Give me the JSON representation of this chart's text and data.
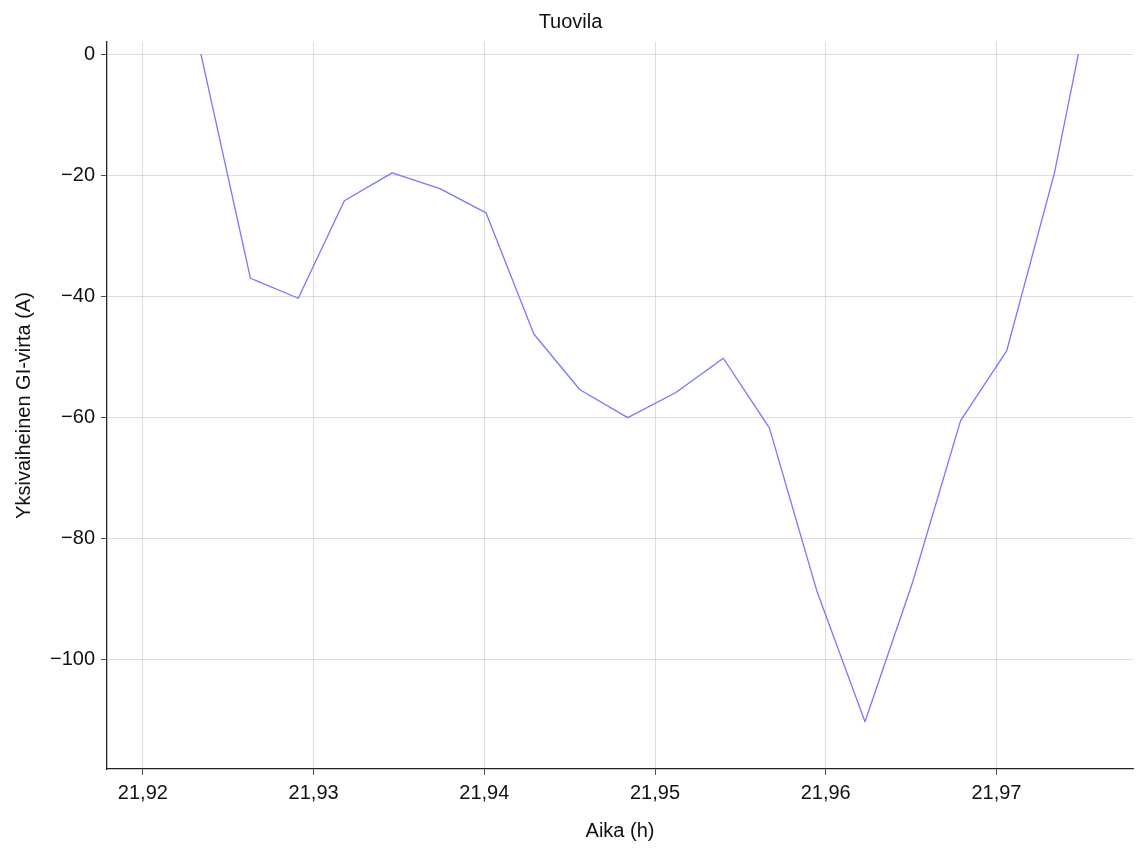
{
  "chart_data": {
    "type": "line",
    "title": "Tuovila",
    "xlabel": "Aika (h)",
    "ylabel": "Yksivaiheinen GI-virta (A)",
    "x": [
      21.9234,
      21.9263,
      21.9291,
      21.9318,
      21.9346,
      21.9374,
      21.9401,
      21.9429,
      21.9456,
      21.9484,
      21.9512,
      21.954,
      21.9567,
      21.9595,
      21.9623,
      21.9651,
      21.9679,
      21.9706,
      21.9734,
      21.9748
    ],
    "series": [
      {
        "color": "#7777ff",
        "values": [
          0,
          -37,
          -40.3,
          -24.2,
          -19.6,
          -22.2,
          -26.2,
          -46.2,
          -55.4,
          -60,
          -55.9,
          -50.2,
          -61.7,
          -88.8,
          -110.2,
          -87.1,
          -60.5,
          -49,
          -19.6,
          0
        ]
      }
    ],
    "xlim": [
      21.9179,
      21.978
    ],
    "xticks": [
      {
        "value": 21.92,
        "label": "21,92"
      },
      {
        "value": 21.93,
        "label": "21,93"
      },
      {
        "value": 21.94,
        "label": "21,94"
      },
      {
        "value": 21.95,
        "label": "21,95"
      },
      {
        "value": 21.96,
        "label": "21,96"
      },
      {
        "value": 21.97,
        "label": "21,97"
      }
    ],
    "ylim": [
      -118,
      2
    ],
    "yticks": [
      {
        "value": -100,
        "label": "−100"
      },
      {
        "value": -80,
        "label": "−80"
      },
      {
        "value": -60,
        "label": "−60"
      },
      {
        "value": -40,
        "label": "−40"
      },
      {
        "value": -20,
        "label": "−20"
      },
      0
    ],
    "grid": true,
    "legend": false,
    "marker": "none",
    "line_style": "solid"
  }
}
